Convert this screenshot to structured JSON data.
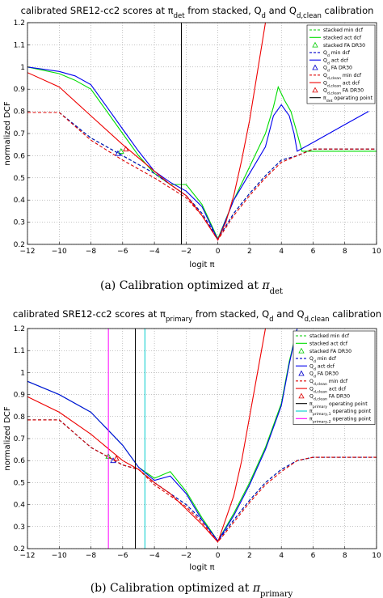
{
  "chart_data": [
    {
      "type": "line",
      "title": "calibrated SRE12-cc2 scores at π_det from stacked, Q_d and Q_d,clean calibration",
      "xlabel": "logit π",
      "ylabel": "normalized DCF",
      "xlim": [
        -12,
        10
      ],
      "ylim": [
        0.2,
        1.2
      ],
      "xticks": [
        "−12",
        "−10",
        "−8",
        "−6",
        "−4",
        "−2",
        "0",
        "2",
        "4",
        "6",
        "8",
        "10"
      ],
      "yticks": [
        "0.2",
        "0.3",
        "0.4",
        "0.5",
        "0.6",
        "0.7",
        "0.8",
        "0.9",
        "1",
        "1.1",
        "1.2"
      ],
      "grid": true,
      "legend_position": "top-right",
      "caption": "(a) Calibration optimized at π_det",
      "series": [
        {
          "name": "stacked min dcf",
          "color": "#00cc00",
          "style": "dashed",
          "points": [
            [
              -12,
              0.795
            ],
            [
              -10,
              0.795
            ],
            [
              -8,
              0.68
            ],
            [
              -6,
              0.6
            ],
            [
              -4,
              0.52
            ],
            [
              -2,
              0.42
            ],
            [
              -1,
              0.34
            ],
            [
              0,
              0.225
            ],
            [
              1,
              0.34
            ],
            [
              2,
              0.43
            ],
            [
              3,
              0.51
            ],
            [
              4,
              0.58
            ],
            [
              5,
              0.6
            ],
            [
              6,
              0.63
            ],
            [
              10,
              0.63
            ]
          ]
        },
        {
          "name": "stacked act dcf",
          "color": "#00dd00",
          "style": "solid",
          "points": [
            [
              -12,
              1.0
            ],
            [
              -10,
              0.97
            ],
            [
              -9,
              0.94
            ],
            [
              -8,
              0.9
            ],
            [
              -7,
              0.8
            ],
            [
              -6,
              0.7
            ],
            [
              -5,
              0.6
            ],
            [
              -4,
              0.52
            ],
            [
              -3,
              0.47
            ],
            [
              -2,
              0.47
            ],
            [
              -1,
              0.38
            ],
            [
              0,
              0.225
            ],
            [
              1,
              0.4
            ],
            [
              2,
              0.55
            ],
            [
              3,
              0.7
            ],
            [
              3.5,
              0.82
            ],
            [
              3.8,
              0.91
            ],
            [
              4.2,
              0.85
            ],
            [
              4.6,
              0.8
            ],
            [
              5,
              0.7
            ],
            [
              5.3,
              0.62
            ],
            [
              6,
              0.62
            ],
            [
              10,
              0.62
            ]
          ]
        },
        {
          "name": "stacked FA DR30",
          "color": "#00cc00",
          "style": "marker",
          "points": [
            [
              -6.1,
              0.62
            ]
          ]
        },
        {
          "name": "Q_d min dcf",
          "color": "#0000cc",
          "style": "dashed",
          "points": [
            [
              -12,
              0.795
            ],
            [
              -10,
              0.795
            ],
            [
              -8,
              0.68
            ],
            [
              -6,
              0.6
            ],
            [
              -4,
              0.52
            ],
            [
              -2,
              0.42
            ],
            [
              -1,
              0.34
            ],
            [
              0,
              0.225
            ],
            [
              1,
              0.34
            ],
            [
              2,
              0.43
            ],
            [
              3,
              0.51
            ],
            [
              4,
              0.58
            ],
            [
              5,
              0.6
            ],
            [
              6,
              0.63
            ],
            [
              10,
              0.63
            ]
          ]
        },
        {
          "name": "Q_d act dcf",
          "color": "#0000ee",
          "style": "solid",
          "points": [
            [
              -12,
              1.0
            ],
            [
              -10,
              0.98
            ],
            [
              -9,
              0.96
            ],
            [
              -8,
              0.92
            ],
            [
              -7,
              0.82
            ],
            [
              -6,
              0.72
            ],
            [
              -5,
              0.62
            ],
            [
              -4,
              0.53
            ],
            [
              -3,
              0.48
            ],
            [
              -2,
              0.44
            ],
            [
              -1,
              0.37
            ],
            [
              0,
              0.22
            ],
            [
              1,
              0.4
            ],
            [
              2,
              0.52
            ],
            [
              3,
              0.64
            ],
            [
              3.5,
              0.78
            ],
            [
              4,
              0.83
            ],
            [
              4.5,
              0.78
            ],
            [
              4.8,
              0.7
            ],
            [
              5,
              0.62
            ],
            [
              6,
              0.66
            ],
            [
              7,
              0.7
            ],
            [
              8,
              0.74
            ],
            [
              9.5,
              0.8
            ]
          ]
        },
        {
          "name": "Q_d FA DR30",
          "color": "#0000cc",
          "style": "marker",
          "points": [
            [
              -6.3,
              0.61
            ]
          ]
        },
        {
          "name": "Q_d,clean min dcf",
          "color": "#dd0000",
          "style": "dashed",
          "points": [
            [
              -12,
              0.795
            ],
            [
              -10,
              0.795
            ],
            [
              -8,
              0.67
            ],
            [
              -6,
              0.58
            ],
            [
              -4,
              0.5
            ],
            [
              -2,
              0.41
            ],
            [
              -1,
              0.33
            ],
            [
              0,
              0.22
            ],
            [
              1,
              0.33
            ],
            [
              2,
              0.42
            ],
            [
              3,
              0.5
            ],
            [
              4,
              0.57
            ],
            [
              5,
              0.6
            ],
            [
              6,
              0.63
            ],
            [
              10,
              0.63
            ]
          ]
        },
        {
          "name": "Q_d,clean act dcf",
          "color": "#ee0000",
          "style": "solid",
          "points": [
            [
              -12,
              0.975
            ],
            [
              -10,
              0.91
            ],
            [
              -8,
              0.78
            ],
            [
              -6,
              0.65
            ],
            [
              -4,
              0.53
            ],
            [
              -3,
              0.47
            ],
            [
              -2,
              0.42
            ],
            [
              -1,
              0.33
            ],
            [
              0,
              0.22
            ],
            [
              0.5,
              0.3
            ],
            [
              1,
              0.42
            ],
            [
              1.5,
              0.58
            ],
            [
              2,
              0.76
            ],
            [
              2.5,
              0.98
            ],
            [
              3,
              1.2
            ]
          ]
        },
        {
          "name": "Q_d,clean FA DR30",
          "color": "#dd0000",
          "style": "marker",
          "points": [
            [
              -5.8,
              0.63
            ]
          ]
        },
        {
          "name": "π_det operating point",
          "color": "#000000",
          "style": "vline",
          "x": -2.3
        }
      ]
    },
    {
      "type": "line",
      "title": "calibrated SRE12-cc2 scores at π_primary from stacked, Q_d and Q_d,clean calibration",
      "xlabel": "logit π",
      "ylabel": "normalized DCF",
      "xlim": [
        -12,
        10
      ],
      "ylim": [
        0.2,
        1.2
      ],
      "xticks": [
        "−12",
        "−10",
        "−8",
        "−6",
        "−4",
        "−2",
        "0",
        "2",
        "4",
        "6",
        "8",
        "10"
      ],
      "yticks": [
        "0.2",
        "0.3",
        "0.4",
        "0.5",
        "0.6",
        "0.7",
        "0.8",
        "0.9",
        "1",
        "1.1",
        "1.2"
      ],
      "grid": true,
      "legend_position": "top-right",
      "caption": "(b) Calibration optimized at π_primary",
      "series": [
        {
          "name": "stacked min dcf",
          "color": "#00cc00",
          "style": "dashed",
          "points": [
            [
              -12,
              0.785
            ],
            [
              -10,
              0.785
            ],
            [
              -8,
              0.66
            ],
            [
              -6,
              0.58
            ],
            [
              -5,
              0.56
            ],
            [
              -4,
              0.5
            ],
            [
              -2,
              0.4
            ],
            [
              -1,
              0.33
            ],
            [
              0,
              0.235
            ],
            [
              1,
              0.33
            ],
            [
              2,
              0.42
            ],
            [
              3,
              0.5
            ],
            [
              4,
              0.56
            ],
            [
              5,
              0.6
            ],
            [
              6,
              0.615
            ],
            [
              10,
              0.615
            ]
          ]
        },
        {
          "name": "stacked act dcf",
          "color": "#00dd00",
          "style": "solid",
          "points": [
            [
              -12,
              0.96
            ],
            [
              -10,
              0.9
            ],
            [
              -8,
              0.82
            ],
            [
              -6,
              0.67
            ],
            [
              -5,
              0.57
            ],
            [
              -4,
              0.52
            ],
            [
              -3,
              0.55
            ],
            [
              -2,
              0.46
            ],
            [
              -1,
              0.34
            ],
            [
              0,
              0.235
            ],
            [
              1,
              0.36
            ],
            [
              2,
              0.5
            ],
            [
              3,
              0.66
            ],
            [
              4,
              0.86
            ],
            [
              4.5,
              1.05
            ],
            [
              5,
              1.2
            ]
          ]
        },
        {
          "name": "stacked FA DR30",
          "color": "#00cc00",
          "style": "marker",
          "points": [
            [
              -6.9,
              0.62
            ]
          ]
        },
        {
          "name": "Q_d min dcf",
          "color": "#0000cc",
          "style": "dashed",
          "points": [
            [
              -12,
              0.785
            ],
            [
              -10,
              0.785
            ],
            [
              -8,
              0.66
            ],
            [
              -6,
              0.58
            ],
            [
              -5,
              0.56
            ],
            [
              -4,
              0.5
            ],
            [
              -2,
              0.4
            ],
            [
              -1,
              0.33
            ],
            [
              0,
              0.235
            ],
            [
              1,
              0.33
            ],
            [
              2,
              0.42
            ],
            [
              3,
              0.5
            ],
            [
              4,
              0.56
            ],
            [
              5,
              0.6
            ],
            [
              6,
              0.615
            ],
            [
              10,
              0.615
            ]
          ]
        },
        {
          "name": "Q_d act dcf",
          "color": "#0000ee",
          "style": "solid",
          "points": [
            [
              -12,
              0.96
            ],
            [
              -10,
              0.9
            ],
            [
              -8,
              0.82
            ],
            [
              -6,
              0.67
            ],
            [
              -5,
              0.57
            ],
            [
              -4,
              0.51
            ],
            [
              -3,
              0.53
            ],
            [
              -2,
              0.45
            ],
            [
              -1,
              0.33
            ],
            [
              0,
              0.235
            ],
            [
              1,
              0.35
            ],
            [
              2,
              0.49
            ],
            [
              3,
              0.65
            ],
            [
              4,
              0.85
            ],
            [
              4.5,
              1.04
            ],
            [
              5,
              1.2
            ]
          ]
        },
        {
          "name": "Q_d FA DR30",
          "color": "#0000cc",
          "style": "marker",
          "points": [
            [
              -6.6,
              0.6
            ]
          ]
        },
        {
          "name": "Q_d,clean min dcf",
          "color": "#dd0000",
          "style": "dashed",
          "points": [
            [
              -12,
              0.785
            ],
            [
              -10,
              0.785
            ],
            [
              -8,
              0.66
            ],
            [
              -6,
              0.58
            ],
            [
              -5,
              0.56
            ],
            [
              -4,
              0.49
            ],
            [
              -2,
              0.39
            ],
            [
              -1,
              0.32
            ],
            [
              0,
              0.23
            ],
            [
              1,
              0.32
            ],
            [
              2,
              0.41
            ],
            [
              3,
              0.49
            ],
            [
              4,
              0.55
            ],
            [
              5,
              0.6
            ],
            [
              6,
              0.615
            ],
            [
              10,
              0.615
            ]
          ]
        },
        {
          "name": "Q_d,clean act dcf",
          "color": "#ee0000",
          "style": "solid",
          "points": [
            [
              -12,
              0.89
            ],
            [
              -10,
              0.82
            ],
            [
              -8,
              0.72
            ],
            [
              -6,
              0.6
            ],
            [
              -5,
              0.56
            ],
            [
              -4,
              0.5
            ],
            [
              -3,
              0.45
            ],
            [
              -2,
              0.38
            ],
            [
              -1,
              0.31
            ],
            [
              0,
              0.23
            ],
            [
              1,
              0.44
            ],
            [
              1.5,
              0.6
            ],
            [
              2,
              0.8
            ],
            [
              2.5,
              1.0
            ],
            [
              3,
              1.2
            ]
          ]
        },
        {
          "name": "Q_d,clean FA DR30",
          "color": "#dd0000",
          "style": "marker",
          "points": [
            [
              -6.4,
              0.61
            ]
          ]
        },
        {
          "name": "π_primary operating point",
          "color": "#000000",
          "style": "vline",
          "x": -5.2
        },
        {
          "name": "π_primary,1 operating point",
          "color": "#00cccc",
          "style": "vline",
          "x": -4.6
        },
        {
          "name": "π_primary,2 operating point",
          "color": "#ff00ff",
          "style": "vline",
          "x": -6.9
        }
      ]
    }
  ],
  "legend_labels": {
    "a": [
      "stacked min dcf",
      "stacked act dcf",
      "stacked FA DR30",
      "Q_d min dcf",
      "Q_d act dcf",
      "Q_d FA DR30",
      "Q_d,clean min dcf",
      "Q_d,clean act dcf",
      "Q_d,clean FA DR30",
      "π_det operating point"
    ],
    "b": [
      "stacked min dcf",
      "stacked act dcf",
      "stacked FA DR30",
      "Q_d min dcf",
      "Q_d act dcf",
      "Q_d FA DR30",
      "Q_d,clean min dcf",
      "Q_d,clean act dcf",
      "Q_d,clean FA DR30",
      "π_primary operating point",
      "π_primary,1 operating point",
      "π_primary,2 operating point"
    ]
  }
}
